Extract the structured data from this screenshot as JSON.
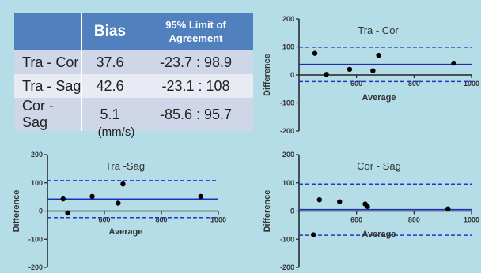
{
  "table": {
    "headers": [
      "",
      "Bias",
      "95% Limit of Agreement"
    ],
    "rows": [
      [
        "Tra - Cor",
        "37.6",
        "-23.7 : 98.9"
      ],
      [
        "Tra - Sag",
        "42.6",
        "-23.1 : 108"
      ],
      [
        "Cor - Sag",
        "5.1",
        "-85.6 : 95.7"
      ]
    ],
    "units": "(mm/s)"
  },
  "colors": {
    "bias_line": "#1f2fb5",
    "limit_line": "#2635c4",
    "point": "#000000",
    "header_bg": "#5180be"
  },
  "chart_data": [
    {
      "type": "scatter",
      "title": "Tra - Cor",
      "xlabel": "Average",
      "ylabel": "Difference",
      "xlim": [
        400,
        1000
      ],
      "ylim": [
        -200,
        200
      ],
      "xticks": [
        "600",
        "800",
        "1000"
      ],
      "yticks": [
        "200",
        "100",
        "0",
        "-100",
        "-200"
      ],
      "bias": 37.6,
      "limits": [
        -23.7,
        98.9
      ],
      "points": [
        {
          "x": 455,
          "y": 77
        },
        {
          "x": 495,
          "y": 2
        },
        {
          "x": 576,
          "y": 20
        },
        {
          "x": 657,
          "y": 15
        },
        {
          "x": 677,
          "y": 70
        },
        {
          "x": 938,
          "y": 42
        }
      ]
    },
    {
      "type": "scatter",
      "title": "Tra -Sag",
      "xlabel": "Average",
      "ylabel": "Difference",
      "xlim": [
        400,
        1000
      ],
      "ylim": [
        -200,
        200
      ],
      "xticks": [
        "600",
        "800",
        "1000"
      ],
      "yticks": [
        "200",
        "100",
        "0",
        "-100",
        "-200"
      ],
      "bias": 42.6,
      "limits": [
        -23.1,
        108
      ],
      "points": [
        {
          "x": 455,
          "y": 43
        },
        {
          "x": 471,
          "y": -7
        },
        {
          "x": 557,
          "y": 52
        },
        {
          "x": 648,
          "y": 28
        },
        {
          "x": 665,
          "y": 96
        },
        {
          "x": 938,
          "y": 52
        }
      ]
    },
    {
      "type": "scatter",
      "title": "Cor - Sag",
      "xlabel": "Average",
      "ylabel": "Difference",
      "xlim": [
        400,
        1000
      ],
      "ylim": [
        -200,
        200
      ],
      "xticks": [
        "600",
        "800",
        "1000"
      ],
      "yticks": [
        "200",
        "100",
        "0",
        "-100",
        "-200"
      ],
      "bias": 5.1,
      "limits": [
        -85.6,
        95.7
      ],
      "points": [
        {
          "x": 450,
          "y": -84
        },
        {
          "x": 471,
          "y": 40
        },
        {
          "x": 541,
          "y": 33
        },
        {
          "x": 630,
          "y": 25
        },
        {
          "x": 638,
          "y": 16
        },
        {
          "x": 918,
          "y": 8
        }
      ]
    }
  ]
}
